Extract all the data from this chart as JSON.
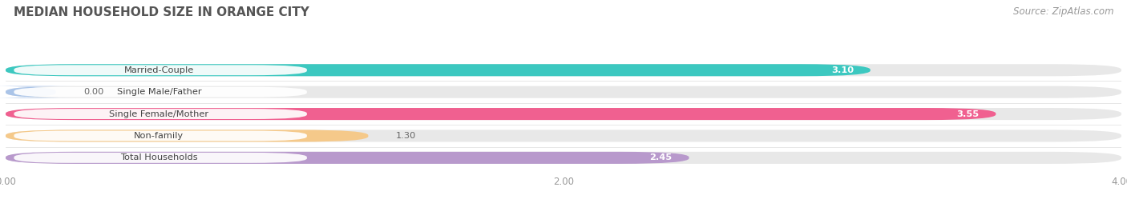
{
  "title": "MEDIAN HOUSEHOLD SIZE IN ORANGE CITY",
  "source": "Source: ZipAtlas.com",
  "categories": [
    "Married-Couple",
    "Single Male/Father",
    "Single Female/Mother",
    "Non-family",
    "Total Households"
  ],
  "values": [
    3.1,
    0.0,
    3.55,
    1.3,
    2.45
  ],
  "bar_colors": [
    "#3cc8c0",
    "#aac4e8",
    "#f06090",
    "#f5c98a",
    "#b899cc"
  ],
  "xlim": [
    0,
    4.0
  ],
  "xticks": [
    0.0,
    2.0,
    4.0
  ],
  "title_fontsize": 11,
  "source_fontsize": 8.5,
  "value_label_inside": [
    true,
    false,
    true,
    false,
    true
  ],
  "label_text_color": "#555555"
}
